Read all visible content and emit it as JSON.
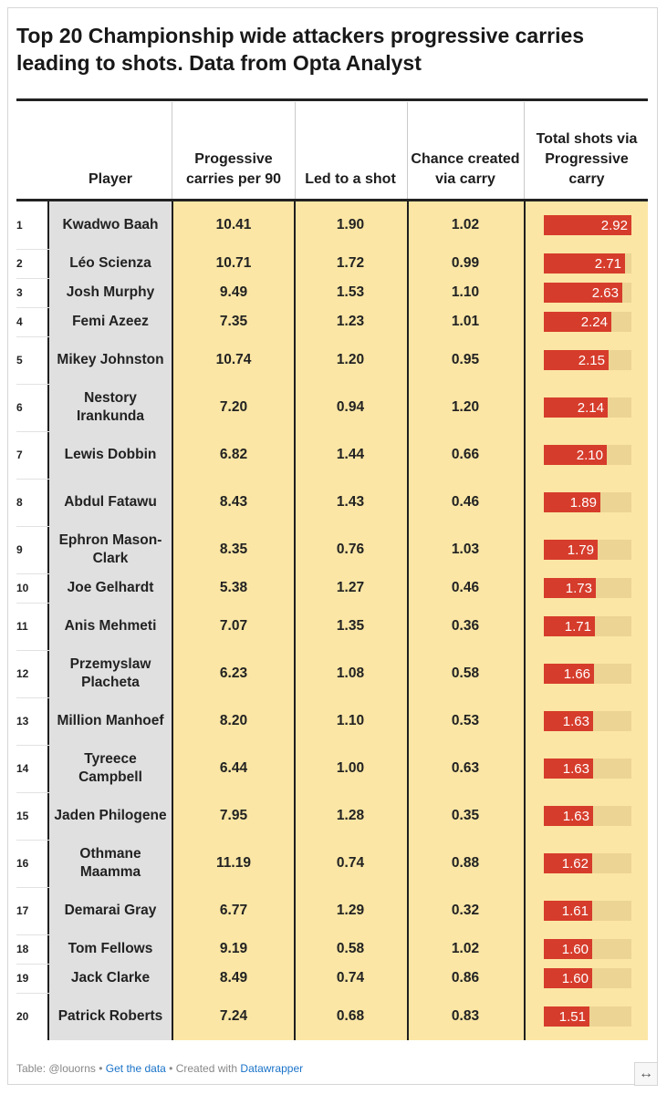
{
  "title": "Top 20 Championship wide attackers progressive carries leading to shots. Data from Opta Analyst",
  "headers": {
    "player": "Player",
    "carries": "Progessive carries per 90",
    "led": "Led to a shot",
    "chance": "Chance created via carry",
    "total": "Total shots via Progressive carry"
  },
  "colors": {
    "bar": "#d63c2b",
    "bar_track": "#ecd494",
    "highlight": "#fbe6a5",
    "player_col": "#e0e0e0"
  },
  "chart_data": {
    "type": "table",
    "title": "Top 20 Championship wide attackers progressive carries leading to shots. Data from Opta Analyst",
    "columns": [
      "Player",
      "Progessive carries per 90",
      "Led to a shot",
      "Chance created via carry",
      "Total shots via Progressive carry"
    ],
    "bar_max": 2.92,
    "rows": [
      {
        "rank": "1",
        "player": "Kwadwo Baah",
        "carries": "10.41",
        "led": "1.90",
        "chance": "1.02",
        "total": 2.92,
        "total_label": "2.92"
      },
      {
        "rank": "2",
        "player": "Léo Scienza",
        "carries": "10.71",
        "led": "1.72",
        "chance": "0.99",
        "total": 2.71,
        "total_label": "2.71"
      },
      {
        "rank": "3",
        "player": "Josh Murphy",
        "carries": "9.49",
        "led": "1.53",
        "chance": "1.10",
        "total": 2.63,
        "total_label": "2.63"
      },
      {
        "rank": "4",
        "player": "Femi Azeez",
        "carries": "7.35",
        "led": "1.23",
        "chance": "1.01",
        "total": 2.24,
        "total_label": "2.24"
      },
      {
        "rank": "5",
        "player": "Mikey Johnston",
        "carries": "10.74",
        "led": "1.20",
        "chance": "0.95",
        "total": 2.15,
        "total_label": "2.15"
      },
      {
        "rank": "6",
        "player": "Nestory Irankunda",
        "carries": "7.20",
        "led": "0.94",
        "chance": "1.20",
        "total": 2.14,
        "total_label": "2.14"
      },
      {
        "rank": "7",
        "player": "Lewis Dobbin",
        "carries": "6.82",
        "led": "1.44",
        "chance": "0.66",
        "total": 2.1,
        "total_label": "2.10"
      },
      {
        "rank": "8",
        "player": "Abdul Fatawu",
        "carries": "8.43",
        "led": "1.43",
        "chance": "0.46",
        "total": 1.89,
        "total_label": "1.89"
      },
      {
        "rank": "9",
        "player": "Ephron Mason-Clark",
        "carries": "8.35",
        "led": "0.76",
        "chance": "1.03",
        "total": 1.79,
        "total_label": "1.79"
      },
      {
        "rank": "10",
        "player": "Joe Gelhardt",
        "carries": "5.38",
        "led": "1.27",
        "chance": "0.46",
        "total": 1.73,
        "total_label": "1.73"
      },
      {
        "rank": "11",
        "player": "Anis Mehmeti",
        "carries": "7.07",
        "led": "1.35",
        "chance": "0.36",
        "total": 1.71,
        "total_label": "1.71"
      },
      {
        "rank": "12",
        "player": "Przemyslaw Placheta",
        "carries": "6.23",
        "led": "1.08",
        "chance": "0.58",
        "total": 1.66,
        "total_label": "1.66"
      },
      {
        "rank": "13",
        "player": "Million Manhoef",
        "carries": "8.20",
        "led": "1.10",
        "chance": "0.53",
        "total": 1.63,
        "total_label": "1.63"
      },
      {
        "rank": "14",
        "player": "Tyreece Campbell",
        "carries": "6.44",
        "led": "1.00",
        "chance": "0.63",
        "total": 1.63,
        "total_label": "1.63"
      },
      {
        "rank": "15",
        "player": "Jaden Philogene",
        "carries": "7.95",
        "led": "1.28",
        "chance": "0.35",
        "total": 1.63,
        "total_label": "1.63"
      },
      {
        "rank": "16",
        "player": "Othmane Maamma",
        "carries": "11.19",
        "led": "0.74",
        "chance": "0.88",
        "total": 1.62,
        "total_label": "1.62"
      },
      {
        "rank": "17",
        "player": "Demarai Gray",
        "carries": "6.77",
        "led": "1.29",
        "chance": "0.32",
        "total": 1.61,
        "total_label": "1.61"
      },
      {
        "rank": "18",
        "player": "Tom Fellows",
        "carries": "9.19",
        "led": "0.58",
        "chance": "1.02",
        "total": 1.6,
        "total_label": "1.60"
      },
      {
        "rank": "19",
        "player": "Jack Clarke",
        "carries": "8.49",
        "led": "0.74",
        "chance": "0.86",
        "total": 1.6,
        "total_label": "1.60"
      },
      {
        "rank": "20",
        "player": "Patrick Roberts",
        "carries": "7.24",
        "led": "0.68",
        "chance": "0.83",
        "total": 1.51,
        "total_label": "1.51"
      }
    ]
  },
  "footer": {
    "prefix": "Table: @louorns",
    "sep1": " • ",
    "get_data": "Get the data",
    "sep2": " • Created with ",
    "datawrapper": "Datawrapper"
  },
  "icons": {
    "resize": "expand-arrows-icon",
    "resize_glyph": "↔"
  }
}
